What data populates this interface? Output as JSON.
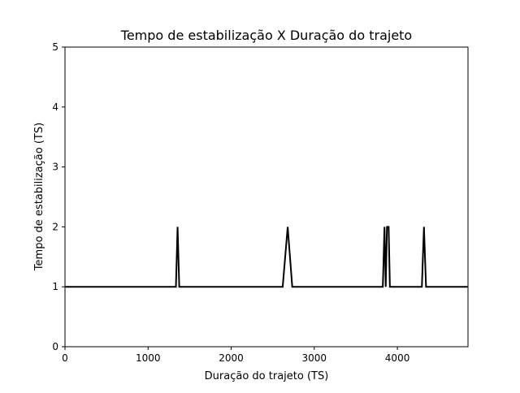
{
  "chart_data": {
    "type": "line",
    "title": "Tempo de estabilização X Duração do trajeto",
    "xlabel": "Duração do trajeto (TS)",
    "ylabel": "Tempo de estabilização (TS)",
    "xlim": [
      0,
      4850
    ],
    "ylim": [
      0,
      5
    ],
    "xticks": [
      0,
      1000,
      2000,
      3000,
      4000
    ],
    "yticks": [
      0,
      1,
      2,
      3,
      4,
      5
    ],
    "grid": false,
    "line_color": "#000000",
    "series": [
      {
        "x": [
          0,
          1335,
          1355,
          1375,
          2620,
          2680,
          2735,
          3825,
          3845,
          3860,
          3875,
          3895,
          3910,
          4295,
          4320,
          4345,
          4850
        ],
        "y": [
          1,
          1,
          2,
          1,
          1,
          2,
          1,
          1,
          2,
          1,
          2,
          2,
          1,
          1,
          2,
          1,
          1
        ]
      }
    ]
  }
}
